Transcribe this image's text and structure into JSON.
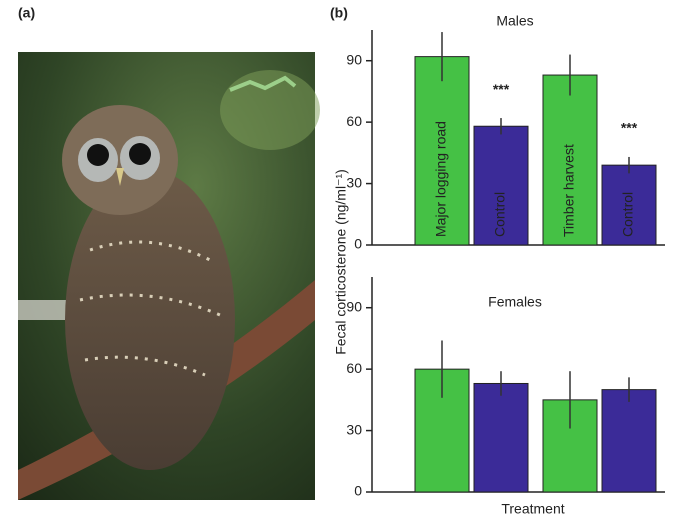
{
  "panel_labels": [
    "(a)",
    "(b)"
  ],
  "chart_data": [
    {
      "type": "bar",
      "title": "Males",
      "categories": [
        "Major logging road",
        "Control",
        "Timber harvest",
        "Control"
      ],
      "values": [
        92,
        58,
        83,
        39
      ],
      "errors": [
        12,
        4,
        10,
        4
      ],
      "significance": [
        null,
        "***",
        null,
        "***"
      ],
      "colors": [
        "#45c145",
        "#3b2b98",
        "#45c145",
        "#3b2b98"
      ],
      "ylim": [
        0,
        105
      ],
      "yticks": [
        0,
        30,
        60,
        90
      ],
      "ylabel": "Fecal corticosterone (ng/ml⁻¹)"
    },
    {
      "type": "bar",
      "title": "Females",
      "values": [
        60,
        53,
        45,
        50
      ],
      "errors": [
        14,
        6,
        14,
        6
      ],
      "colors": [
        "#45c145",
        "#3b2b98",
        "#45c145",
        "#3b2b98"
      ],
      "ylim": [
        0,
        105
      ],
      "yticks": [
        0,
        30,
        60,
        90
      ],
      "xlabel": "Treatment"
    }
  ]
}
